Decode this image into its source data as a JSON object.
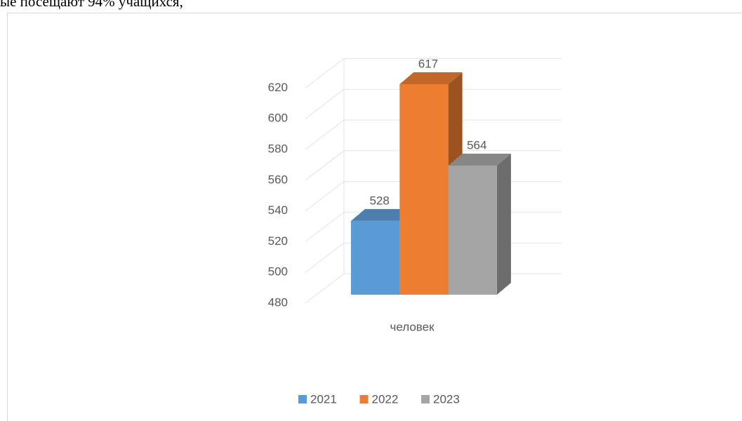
{
  "document_text": "ые посещают 94% учащихся,",
  "chart_data": {
    "type": "bar3d",
    "categories": [
      "человек"
    ],
    "series": [
      {
        "name": "2021",
        "color": "#5b9bd5",
        "values": [
          528
        ]
      },
      {
        "name": "2022",
        "color": "#ed7d31",
        "values": [
          617
        ]
      },
      {
        "name": "2023",
        "color": "#a5a5a5",
        "values": [
          564
        ]
      }
    ],
    "ylim": [
      480,
      620
    ],
    "yticks": [
      480,
      500,
      520,
      540,
      560,
      580,
      600,
      620
    ],
    "grid": true,
    "legend": "bottom"
  }
}
